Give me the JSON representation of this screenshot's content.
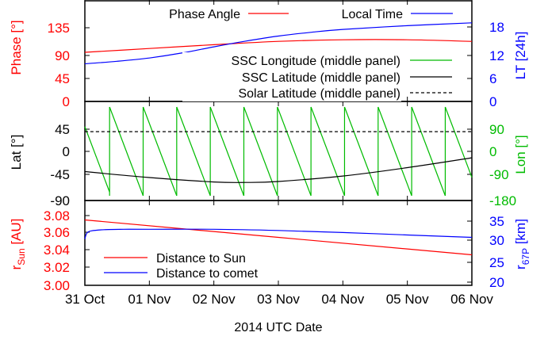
{
  "chart_data": {
    "type": "line",
    "xlabel": "2014 UTC Date",
    "x_range": [
      "2014-10-31",
      "2014-11-06"
    ],
    "x_ticks": [
      "31 Oct",
      "01 Nov",
      "02 Nov",
      "03 Nov",
      "04 Nov",
      "05 Nov",
      "06 Nov"
    ],
    "panels": [
      {
        "name": "top",
        "ylabel_left": "Phase [°]",
        "ylabel_right": "LT [24h]",
        "left_color": "#ff0000",
        "right_color": "#0000ff",
        "ylim_left": [
          0,
          180
        ],
        "ylim_right": [
          0,
          24
        ],
        "yticks_left": [
          "135",
          "90",
          "45",
          "0"
        ],
        "yticks_right": [
          "18",
          "12",
          "6",
          "0"
        ],
        "legend_top": [
          "Phase Angle",
          "Local Time"
        ],
        "legend_lower": [
          "SSC Longitude (middle panel)",
          "SSC Latitude (middle panel)",
          "Solar Latitude (middle panel)"
        ],
        "series": [
          {
            "name": "Phase Angle",
            "axis": "left",
            "color": "#ff0000",
            "x": [
              0,
              1,
              2,
              3,
              4,
              5,
              6
            ],
            "y": [
              90,
              97,
              104,
              110,
              113,
              113,
              110
            ]
          },
          {
            "name": "Local Time",
            "axis": "right",
            "color": "#0000ff",
            "x": [
              0,
              0.5,
              1,
              1.5,
              2,
              2.5,
              3,
              3.5,
              4,
              5,
              6
            ],
            "y": [
              9.1,
              9.7,
              10.5,
              11.7,
              13.2,
              14.6,
              15.8,
              16.7,
              17.4,
              18.3,
              19.0
            ]
          }
        ]
      },
      {
        "name": "middle",
        "ylabel_left": "Lat [°]",
        "ylabel_right": "Lon [°]",
        "left_color": "#000000",
        "right_color": "#00bb00",
        "ylim_left": [
          -90,
          90
        ],
        "ylim_right": [
          -180,
          180
        ],
        "yticks_left": [
          "45",
          "0",
          "-45",
          "-90"
        ],
        "yticks_right": [
          "90",
          "0",
          "-90",
          "-180"
        ],
        "series": [
          {
            "name": "SSC Latitude (middle panel)",
            "axis": "left",
            "color": "#000000",
            "x": [
              0,
              1,
              2,
              2.5,
              3,
              4,
              5,
              6
            ],
            "y": [
              -41,
              -53,
              -62,
              -63,
              -61,
              -50,
              -33,
              -13
            ]
          },
          {
            "name": "Solar Latitude (middle panel)",
            "axis": "left",
            "color": "#000000",
            "dashed": true,
            "x": [
              0,
              6
            ],
            "y": [
              40,
              40
            ]
          },
          {
            "name": "SSC Longitude (middle panel)",
            "axis": "right",
            "color": "#00bb00",
            "sawtooth": true,
            "period_days": 0.5204,
            "first_wrap_day": 0.3833,
            "y_at_start": 100,
            "y_wrap_from": -180,
            "y_wrap_to": 180
          }
        ]
      },
      {
        "name": "bottom",
        "ylabel_left_main": "r",
        "ylabel_left_sub": "Sun",
        "ylabel_left_unit": " [AU]",
        "ylabel_right_main": "r",
        "ylabel_right_sub": "67P",
        "ylabel_right_unit": " [km]",
        "left_color": "#ff0000",
        "right_color": "#0000ff",
        "ylim_left": [
          3.0,
          3.09
        ],
        "ylim_right": [
          20,
          38
        ],
        "yticks_left": [
          "3.08",
          "3.06",
          "3.04",
          "3.02",
          "3.00"
        ],
        "yticks_right": [
          "35",
          "30",
          "25",
          "20"
        ],
        "legend": [
          "Distance to Sun",
          "Distance to comet"
        ],
        "series": [
          {
            "name": "Distance to Sun",
            "axis": "left",
            "color": "#ff0000",
            "x": [
              0,
              6
            ],
            "y": [
              3.075,
              3.035
            ]
          },
          {
            "name": "Distance to comet",
            "axis": "right",
            "color": "#0000ff",
            "x": [
              0,
              0.03,
              0.1,
              0.3,
              0.6,
              1,
              2,
              3,
              4,
              5,
              6
            ],
            "y": [
              30.6,
              32.0,
              32.6,
              32.9,
              33.0,
              33.0,
              33.0,
              32.7,
              32.2,
              31.6,
              31.0
            ]
          }
        ]
      }
    ]
  }
}
